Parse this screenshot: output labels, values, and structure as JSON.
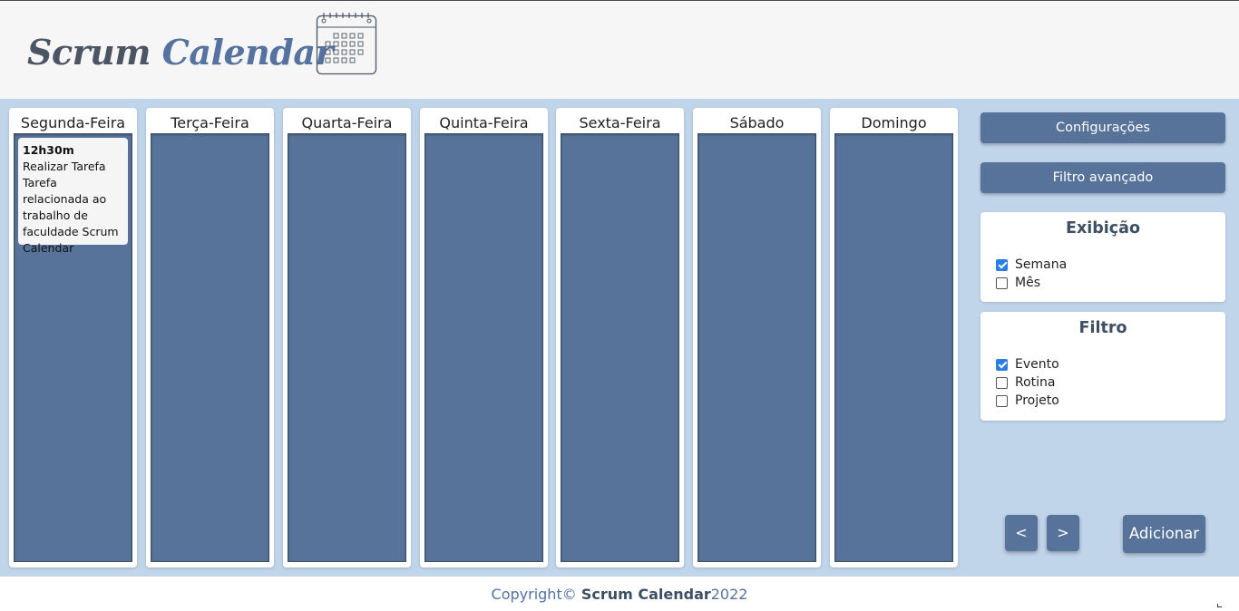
{
  "header": {
    "logo_word1": "Scrum",
    "logo_word2": "Calendar",
    "logo_icon": "calendar-icon"
  },
  "week": {
    "days": [
      {
        "label": "Segunda-Feira"
      },
      {
        "label": "Terça-Feira"
      },
      {
        "label": "Quarta-Feira"
      },
      {
        "label": "Quinta-Feira"
      },
      {
        "label": "Sexta-Feira"
      },
      {
        "label": "Sábado"
      },
      {
        "label": "Domingo"
      }
    ],
    "events": [
      {
        "day": "Segunda-Feira",
        "time": "12h30m",
        "text": "Realizar Tarefa Tarefa relacionada ao trabalho de faculdade Scrum Calendar"
      }
    ]
  },
  "sidebar": {
    "settings_label": "Configurações",
    "advanced_filter_label": "Filtro avançado",
    "display": {
      "title": "Exibição",
      "options": [
        {
          "label": "Semana",
          "checked": true
        },
        {
          "label": "Mês",
          "checked": false
        }
      ]
    },
    "filter": {
      "title": "Filtro",
      "options": [
        {
          "label": "Evento",
          "checked": true
        },
        {
          "label": "Rotina",
          "checked": false
        },
        {
          "label": "Projeto",
          "checked": false
        }
      ]
    },
    "prev_label": "<",
    "next_label": ">",
    "add_label": "Adicionar"
  },
  "footer": {
    "copyright_prefix": "Copyright©",
    "brand": "Scrum Calendar",
    "year": "2022"
  },
  "colors": {
    "header_bg": "#f6f6f6",
    "main_bg": "#c0d4ea",
    "column": "#577399",
    "accent": "#55739e",
    "checkbox": "#2a7de1"
  }
}
